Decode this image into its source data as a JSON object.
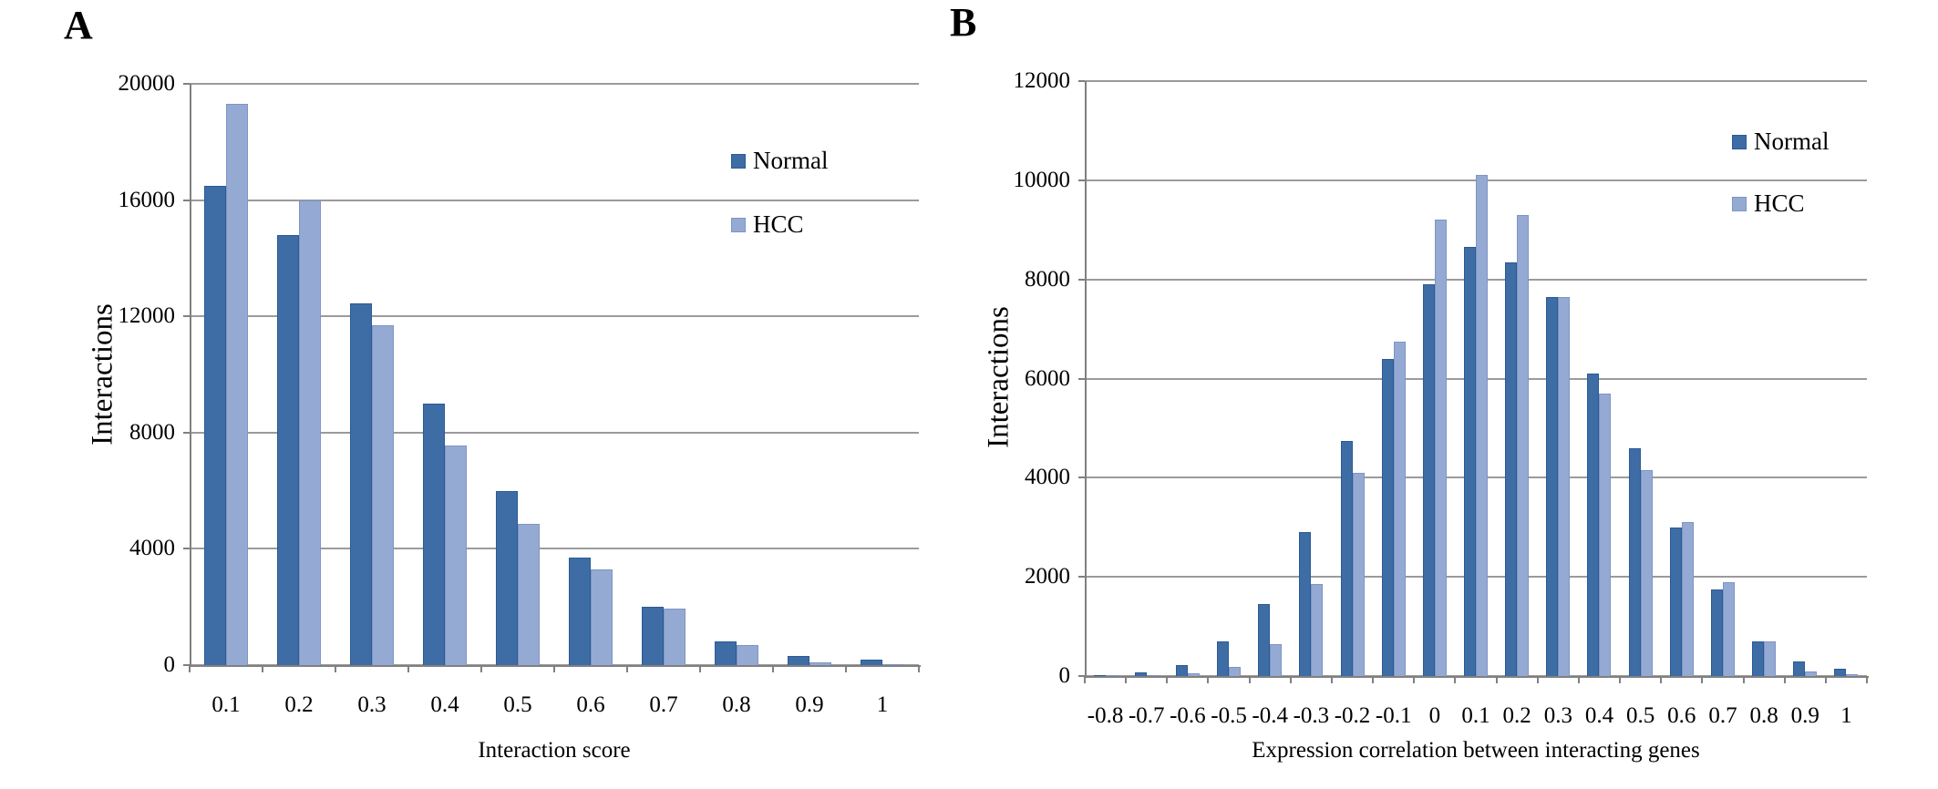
{
  "figure": {
    "background": "#ffffff"
  },
  "colors": {
    "normal_fill": "#3E6DA5",
    "normal_border": "#2C5A92",
    "hcc_fill": "#95AAD3",
    "hcc_border": "#7E94C5",
    "gridline": "#9B9B9B",
    "axis": "#808080",
    "text": "#000000"
  },
  "chart_data": [
    {
      "type": "bar",
      "panel_label": "A",
      "xlabel": "Interaction score",
      "ylabel": "Interactions",
      "ylim": [
        0,
        20000
      ],
      "ytick_step": 4000,
      "yticks": [
        "20000",
        "16000",
        "12000",
        "8000",
        "4000",
        "0"
      ],
      "categories": [
        "0.1",
        "0.2",
        "0.3",
        "0.4",
        "0.5",
        "0.6",
        "0.7",
        "0.8",
        "0.9",
        "1"
      ],
      "grid": true,
      "legend_position": "top-right",
      "legend": [
        "Normal",
        "HCC"
      ],
      "series": [
        {
          "name": "Normal",
          "values": [
            16500,
            14800,
            12450,
            9000,
            6000,
            3700,
            2000,
            800,
            300,
            180
          ]
        },
        {
          "name": "HCC",
          "values": [
            19300,
            16000,
            11700,
            7550,
            4850,
            3300,
            1950,
            700,
            100,
            30
          ]
        }
      ]
    },
    {
      "type": "bar",
      "panel_label": "B",
      "xlabel": "Expression correlation between interacting genes",
      "ylabel": "Interactions",
      "ylim": [
        0,
        12000
      ],
      "ytick_step": 2000,
      "yticks": [
        "12000",
        "10000",
        "8000",
        "6000",
        "4000",
        "2000",
        "0"
      ],
      "categories": [
        "-0.8",
        "-0.7",
        "-0.6",
        "-0.5",
        "-0.4",
        "-0.3",
        "-0.2",
        "-0.1",
        "0",
        "0.1",
        "0.2",
        "0.3",
        "0.4",
        "0.5",
        "0.6",
        "0.7",
        "0.8",
        "0.9",
        "1"
      ],
      "grid": true,
      "legend_position": "top-right",
      "legend": [
        "Normal",
        "HCC"
      ],
      "series": [
        {
          "name": "Normal",
          "values": [
            20,
            70,
            220,
            700,
            1450,
            2900,
            4750,
            6400,
            7900,
            8650,
            8350,
            7650,
            6100,
            4600,
            3000,
            1750,
            700,
            300,
            150
          ]
        },
        {
          "name": "HCC",
          "values": [
            10,
            20,
            60,
            180,
            650,
            1850,
            4100,
            6750,
            9200,
            10100,
            9300,
            7650,
            5700,
            4150,
            3100,
            1900,
            700,
            100,
            30
          ]
        }
      ]
    }
  ]
}
